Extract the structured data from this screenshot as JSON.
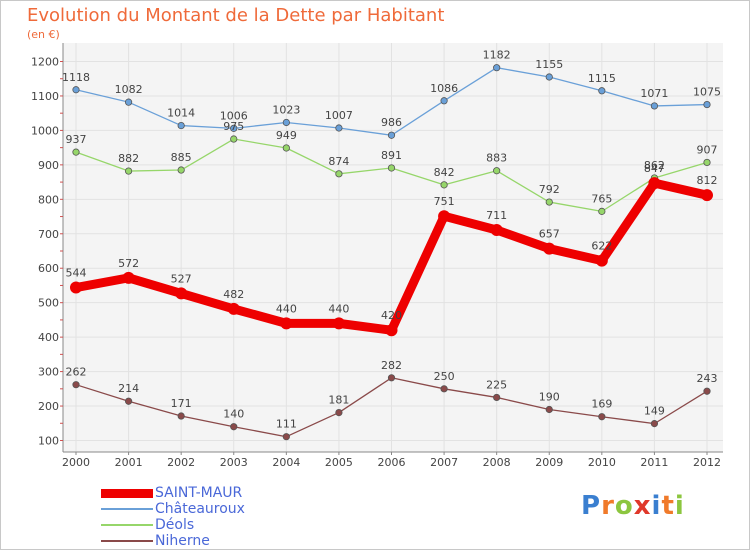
{
  "title": "Evolution du Montant de la Dette par Habitant",
  "subtitle": "(en €)",
  "logo": {
    "text": "Proxiti",
    "letters": [
      {
        "ch": "P",
        "color": "#3a7fd0"
      },
      {
        "ch": "r",
        "color": "#f07a2a"
      },
      {
        "ch": "o",
        "color": "#8cc63f"
      },
      {
        "ch": "x",
        "color": "#e0382a"
      },
      {
        "ch": "i",
        "color": "#3a7fd0"
      },
      {
        "ch": "t",
        "color": "#f07a2a"
      },
      {
        "ch": "i",
        "color": "#8cc63f"
      }
    ]
  },
  "chart_data": {
    "type": "line",
    "title": "Evolution du Montant de la Dette par Habitant",
    "subtitle": "(en €)",
    "x": [
      "2000",
      "2001",
      "2002",
      "2003",
      "2004",
      "2005",
      "2006",
      "2007",
      "2008",
      "2009",
      "2010",
      "2011",
      "2012"
    ],
    "yticks": [
      100,
      200,
      300,
      400,
      500,
      600,
      700,
      800,
      900,
      1000,
      1100,
      1200
    ],
    "ylim": [
      100,
      1200
    ],
    "grid": true,
    "legend_position": "bottom-left",
    "series": [
      {
        "name": "SAINT-MAUR",
        "color": "#ee0000",
        "values": [
          544,
          572,
          527,
          482,
          440,
          440,
          420,
          751,
          711,
          657,
          622,
          847,
          812
        ],
        "labels": [
          "544",
          "572",
          "527",
          "482",
          "440",
          "440",
          "420",
          "751",
          "711",
          "657",
          "622",
          "847",
          "812"
        ],
        "emphasis": true
      },
      {
        "name": "Châteauroux",
        "color": "#6aa0d8",
        "values": [
          1118,
          1082,
          1014,
          1006,
          1023,
          1007,
          986,
          1086,
          1182,
          1155,
          1115,
          1071,
          1075
        ],
        "labels": [
          "1118",
          "1082",
          "1014",
          "1006",
          "1023",
          "1007",
          "986",
          "1086",
          "1182",
          "1155",
          "1115",
          "1071",
          "1075"
        ]
      },
      {
        "name": "Déols",
        "color": "#96d66a",
        "values": [
          937,
          882,
          885,
          975,
          949,
          874,
          891,
          842,
          883,
          792,
          765,
          862,
          907
        ],
        "labels": [
          "937",
          "882",
          "885",
          "975",
          "949",
          "874",
          "891",
          "842",
          "883",
          "792",
          "765",
          "862",
          "907"
        ]
      },
      {
        "name": "Niherne",
        "color": "#8a4a4a",
        "values": [
          262,
          214,
          171,
          140,
          111,
          181,
          282,
          250,
          225,
          190,
          169,
          149,
          243
        ],
        "labels": [
          "262",
          "214",
          "171",
          "140",
          "111",
          "181",
          "282",
          "250",
          "225",
          "190",
          "169",
          "149",
          "243"
        ]
      }
    ]
  }
}
